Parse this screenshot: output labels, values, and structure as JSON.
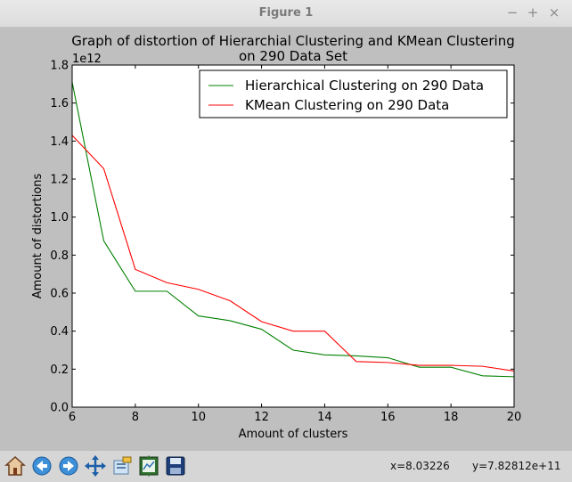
{
  "window": {
    "title": "Figure 1",
    "minimize": "−",
    "maximize": "+",
    "close": "×"
  },
  "chart_data": {
    "type": "line",
    "title_line1": "Graph of distortion of Hierarchial Clustering and KMean Clustering",
    "title_line2": "on 290 Data Set",
    "xlabel": "Amount of clusters",
    "ylabel": "Amount of distortions",
    "y_offset_label": "1e12",
    "xlim": [
      6,
      20
    ],
    "ylim": [
      0,
      1.8
    ],
    "x_ticks": [
      "6",
      "8",
      "10",
      "12",
      "14",
      "16",
      "18",
      "20"
    ],
    "y_ticks": [
      "0.0",
      "0.2",
      "0.4",
      "0.6",
      "0.8",
      "1.0",
      "1.2",
      "1.4",
      "1.6",
      "1.8"
    ],
    "x": [
      6,
      7,
      8,
      9,
      10,
      11,
      12,
      13,
      14,
      15,
      16,
      17,
      18,
      19,
      20
    ],
    "legend_position": "top-right",
    "series": [
      {
        "name": "Hierarchical Clustering on 290 Data",
        "color": "#008000",
        "values": [
          1.71,
          0.875,
          0.61,
          0.61,
          0.48,
          0.455,
          0.41,
          0.3,
          0.275,
          0.27,
          0.26,
          0.21,
          0.21,
          0.165,
          0.16
        ]
      },
      {
        "name": "KMean Clustering on 290 Data",
        "color": "#ff0000",
        "values": [
          1.43,
          1.255,
          0.725,
          0.655,
          0.62,
          0.56,
          0.45,
          0.4,
          0.4,
          0.24,
          0.235,
          0.22,
          0.22,
          0.215,
          0.19
        ]
      }
    ]
  },
  "toolbar": {
    "buttons": [
      "home-icon",
      "back-arrow-icon",
      "forward-arrow-icon",
      "pan-icon",
      "zoom-rect-icon",
      "subplots-config-icon",
      "save-icon"
    ],
    "x_readout": "x=8.03226",
    "y_readout": "y=7.82812e+11"
  }
}
